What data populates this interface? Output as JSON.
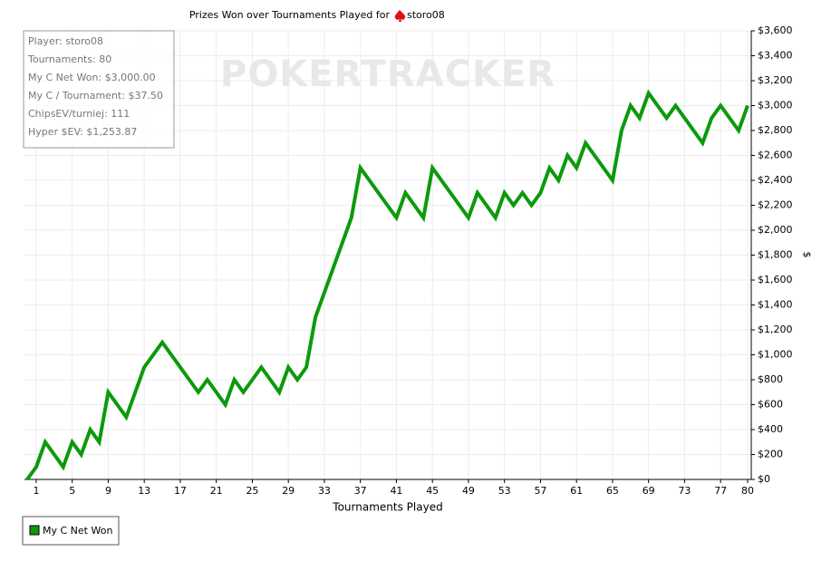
{
  "chart_data": {
    "type": "line",
    "title": "Prizes Won over Tournaments Played for",
    "title_player": "storo08",
    "watermark": "POKERTRACKER",
    "stats": [
      "Player: storo08",
      "Tournaments: 80",
      "My C Net Won: $3,000.00",
      "My C / Tournament: $37.50",
      "ChipsEV/turniej: 111",
      "Hyper $EV: $1,253.87"
    ],
    "x_label": "Tournaments Played",
    "y_label": "$",
    "x": [
      0,
      1,
      2,
      3,
      4,
      5,
      6,
      7,
      8,
      9,
      10,
      11,
      12,
      13,
      14,
      15,
      16,
      17,
      18,
      19,
      20,
      21,
      22,
      23,
      24,
      25,
      26,
      27,
      28,
      29,
      30,
      31,
      32,
      33,
      34,
      35,
      36,
      37,
      38,
      39,
      40,
      41,
      42,
      43,
      44,
      45,
      46,
      47,
      48,
      49,
      50,
      51,
      52,
      53,
      54,
      55,
      56,
      57,
      58,
      59,
      60,
      61,
      62,
      63,
      64,
      65,
      66,
      67,
      68,
      69,
      70,
      71,
      72,
      73,
      74,
      75,
      76,
      77,
      78,
      79,
      80
    ],
    "series": [
      {
        "name": "My C Net Won",
        "color": "#0b9a0b",
        "values": [
          0,
          100,
          300,
          200,
          100,
          300,
          200,
          400,
          300,
          700,
          600,
          500,
          700,
          900,
          1000,
          1100,
          1000,
          900,
          800,
          700,
          800,
          700,
          600,
          800,
          700,
          800,
          900,
          800,
          700,
          900,
          800,
          900,
          1300,
          1500,
          1700,
          1900,
          2100,
          2500,
          2400,
          2300,
          2200,
          2100,
          2300,
          2200,
          2100,
          2500,
          2400,
          2300,
          2200,
          2100,
          2300,
          2200,
          2100,
          2300,
          2200,
          2300,
          2200,
          2300,
          2500,
          2400,
          2600,
          2500,
          2700,
          2600,
          2500,
          2400,
          2800,
          3000,
          2900,
          3100,
          3000,
          2900,
          3000,
          2900,
          2800,
          2700,
          2900,
          3000,
          2900,
          2800,
          3000
        ]
      }
    ],
    "xlim": [
      0,
      80
    ],
    "xticks": [
      1,
      5,
      9,
      13,
      17,
      21,
      25,
      29,
      33,
      37,
      41,
      45,
      49,
      53,
      57,
      61,
      65,
      69,
      73,
      77,
      80
    ],
    "ylim": [
      0,
      3600
    ],
    "yticks": [
      {
        "value": 0,
        "label": "$0"
      },
      {
        "value": 200,
        "label": "$200"
      },
      {
        "value": 400,
        "label": "$400"
      },
      {
        "value": 600,
        "label": "$600"
      },
      {
        "value": 800,
        "label": "$800"
      },
      {
        "value": 1000,
        "label": "$1,000"
      },
      {
        "value": 1200,
        "label": "$1,200"
      },
      {
        "value": 1400,
        "label": "$1,400"
      },
      {
        "value": 1600,
        "label": "$1,600"
      },
      {
        "value": 1800,
        "label": "$1,800"
      },
      {
        "value": 2000,
        "label": "$2,000"
      },
      {
        "value": 2200,
        "label": "$2,200"
      },
      {
        "value": 2400,
        "label": "$2,400"
      },
      {
        "value": 2600,
        "label": "$2,600"
      },
      {
        "value": 2800,
        "label": "$2,800"
      },
      {
        "value": 3000,
        "label": "$3,000"
      },
      {
        "value": 3200,
        "label": "$3,200"
      },
      {
        "value": 3400,
        "label": "$3,400"
      },
      {
        "value": 3600,
        "label": "$3,600"
      }
    ],
    "grid": true
  }
}
